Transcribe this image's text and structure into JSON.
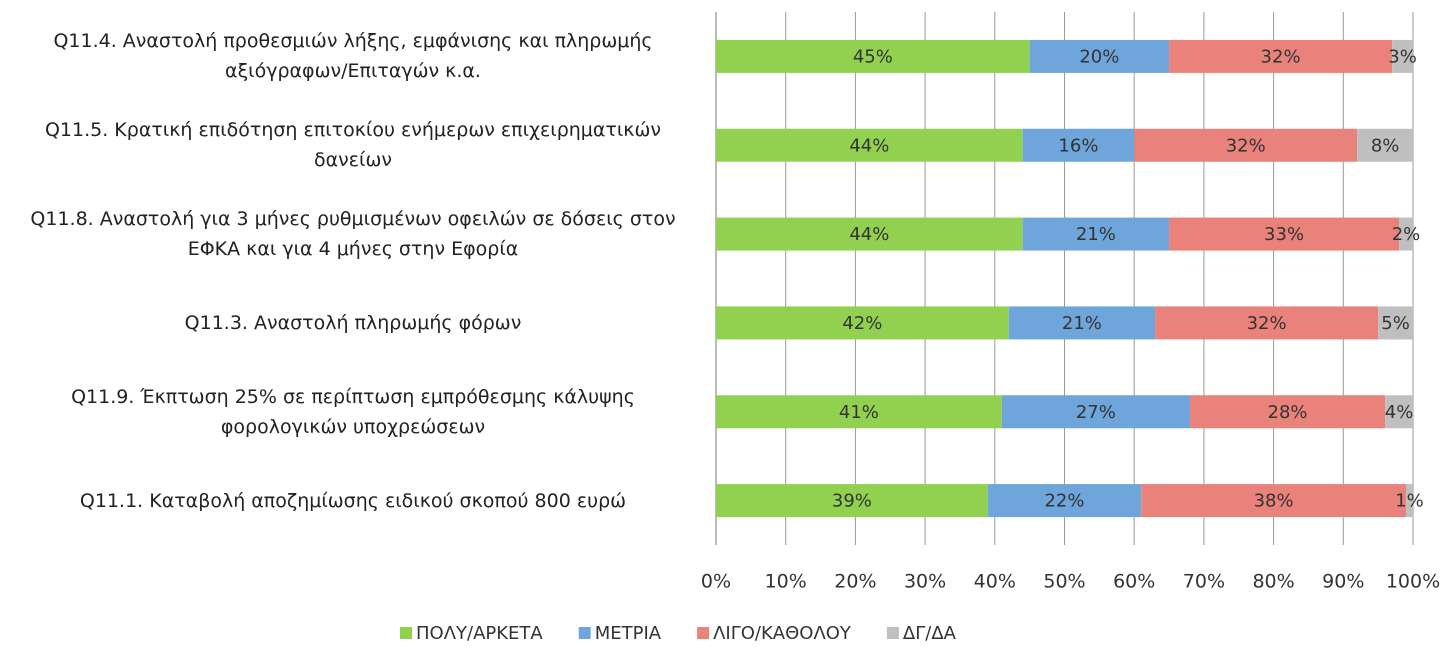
{
  "chart_data": {
    "type": "stacked_barh",
    "categories": [
      "Q11.4. Αναστολή προθεσμιών λήξης, εμφάνισης και πληρωμής αξιόγραφων/Επιταγών κ.α.",
      "Q11.5. Κρατική επιδότηση επιτοκίου ενήμερων επιχειρηματικών δανείων",
      "Q11.8. Αναστολή για 3 μήνες ρυθμισμένων οφειλών σε δόσεις στον ΕΦΚΑ και για 4 μήνες στην Εφορία",
      "Q11.3. Αναστολή πληρωμής φόρων",
      "Q11.9. Έκπτωση 25% σε περίπτωση εμπρόθεσμης κάλυψης φορολογικών υποχρεώσεων",
      "Q11.1. Καταβολή αποζημίωσης ειδικού σκοπού 800 ευρώ"
    ],
    "series": [
      {
        "name": "ΠΟΛΥ/ΑΡΚΕΤΑ",
        "color": "#92d050",
        "values": [
          45,
          44,
          44,
          42,
          41,
          39
        ],
        "value_labels": [
          "45%",
          "44%",
          "44%",
          "42%",
          "41%",
          "39%"
        ]
      },
      {
        "name": "ΜΕΤΡΙΑ",
        "color": "#6ea6dc",
        "values": [
          20,
          16,
          21,
          21,
          27,
          22
        ],
        "value_labels": [
          "20%",
          "16%",
          "21%",
          "21%",
          "27%",
          "22%"
        ]
      },
      {
        "name": "ΛΙΓΟ/ΚΑΘΟΛΟΥ",
        "color": "#e9827b",
        "values": [
          32,
          32,
          33,
          32,
          28,
          38
        ],
        "value_labels": [
          "32%",
          "32%",
          "33%",
          "32%",
          "28%",
          "38%"
        ]
      },
      {
        "name": "ΔΓ/ΔΑ",
        "color": "#bfbfbf",
        "values": [
          3,
          8,
          2,
          5,
          4,
          1
        ],
        "value_labels": [
          "3%",
          "8%",
          "2%",
          "5%",
          "4%",
          "1%"
        ]
      }
    ],
    "xlim": [
      0,
      100
    ],
    "xticks": [
      {
        "value": 0,
        "label": "0%"
      },
      {
        "value": 10,
        "label": "10%"
      },
      {
        "value": 20,
        "label": "20%"
      },
      {
        "value": 30,
        "label": "30%"
      },
      {
        "value": 40,
        "label": "40%"
      },
      {
        "value": 50,
        "label": "50%"
      },
      {
        "value": 60,
        "label": "60%"
      },
      {
        "value": 70,
        "label": "70%"
      },
      {
        "value": 80,
        "label": "80%"
      },
      {
        "value": 90,
        "label": "90%"
      },
      {
        "value": 100,
        "label": "100%"
      }
    ],
    "grid": true,
    "legend": "bottom"
  }
}
